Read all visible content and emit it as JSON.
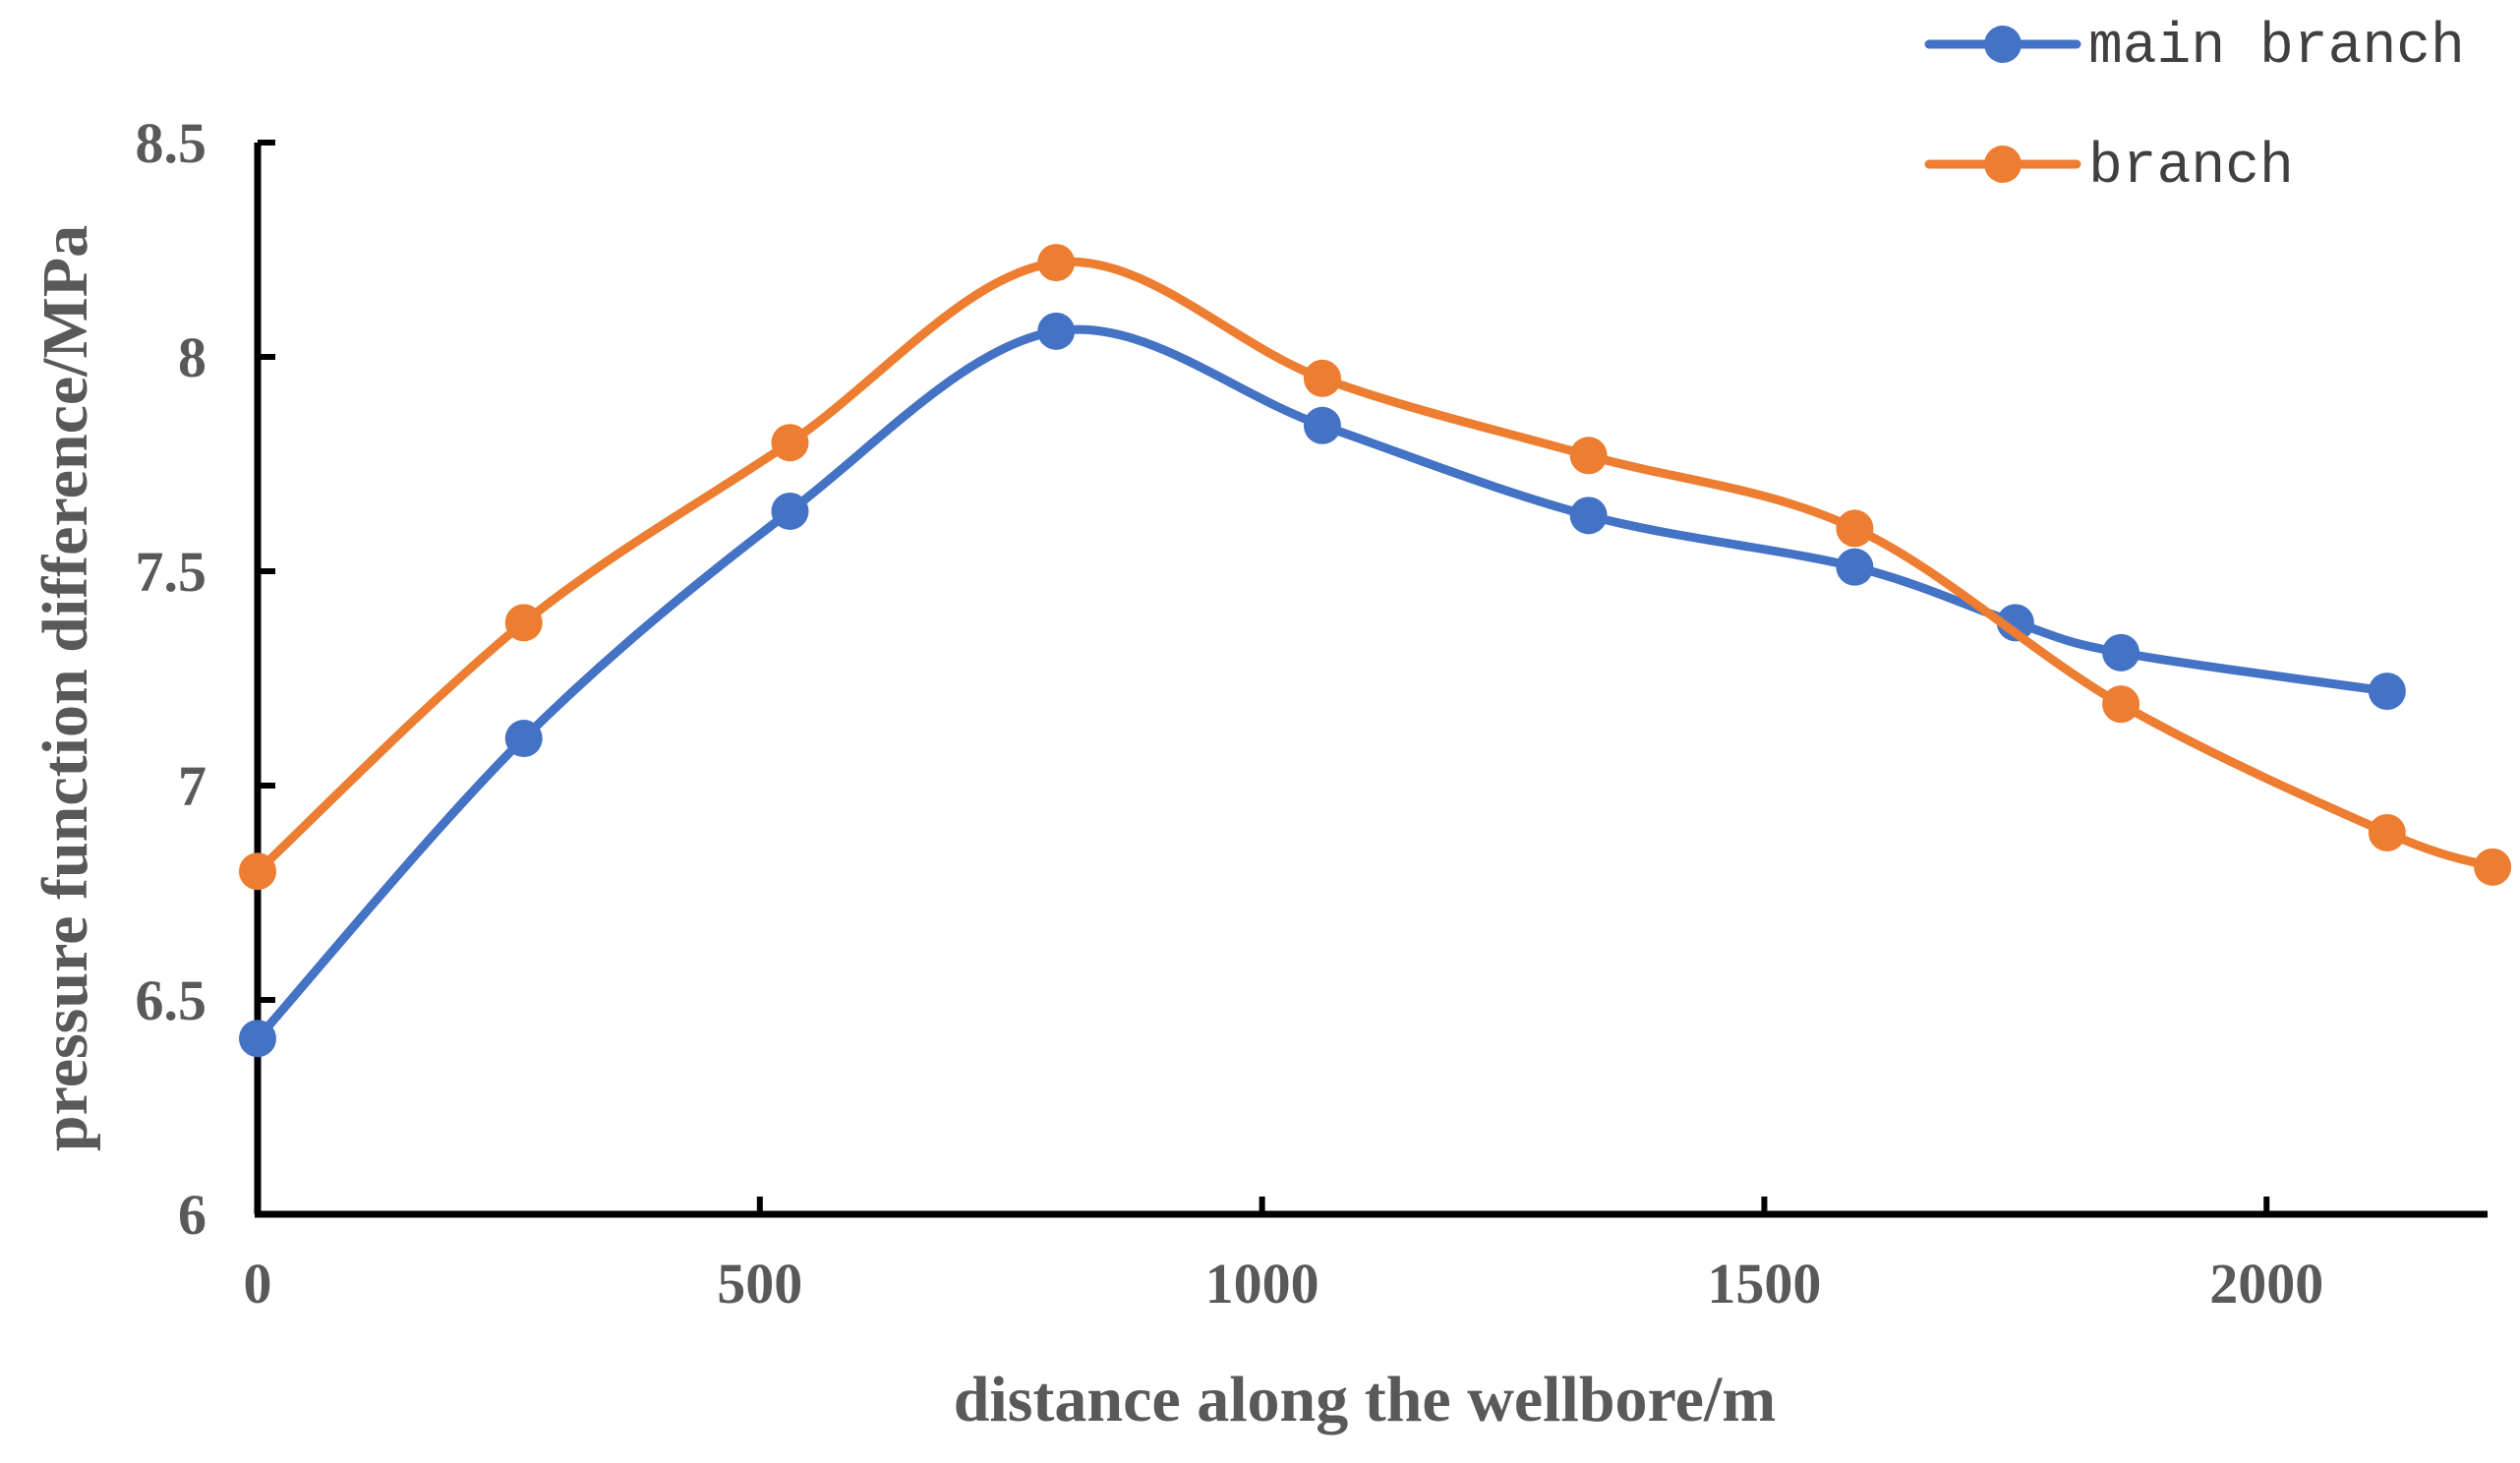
{
  "chart_data": {
    "type": "line",
    "title": "",
    "xlabel": "distance along the wellbore/m",
    "ylabel": "pressure function difference/MPa",
    "xlim": [
      0,
      2220
    ],
    "ylim": [
      6,
      8.5
    ],
    "xticks": [
      0,
      500,
      1000,
      1500,
      2000
    ],
    "yticks": [
      6,
      6.5,
      7,
      7.5,
      8,
      8.5
    ],
    "xtick_labels": [
      "0",
      "500",
      "1000",
      "1500",
      "2000"
    ],
    "ytick_labels": [
      "6",
      "6.5",
      "7",
      "7.5",
      "8",
      "8.5"
    ],
    "grid": false,
    "legend_position": "top-right",
    "smooth": true,
    "series": [
      {
        "name": "main branch",
        "color": "#4472C4",
        "x": [
          0,
          265,
          530,
          795,
          1060,
          1325,
          1590,
          1750,
          1855,
          2120
        ],
        "y": [
          6.41,
          7.11,
          7.64,
          8.06,
          7.84,
          7.63,
          7.51,
          7.38,
          7.31,
          7.22
        ]
      },
      {
        "name": "branch",
        "color": "#ED7D31",
        "x": [
          0,
          265,
          530,
          795,
          1060,
          1325,
          1590,
          1855,
          2120,
          2225
        ],
        "y": [
          6.8,
          7.38,
          7.8,
          8.22,
          7.95,
          7.77,
          7.6,
          7.19,
          6.89,
          6.81
        ]
      }
    ]
  }
}
